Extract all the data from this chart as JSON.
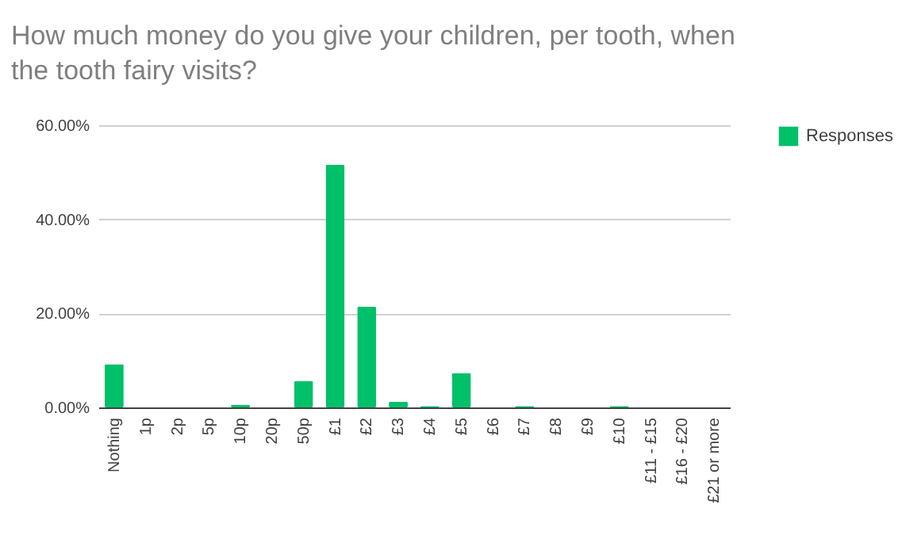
{
  "chart_data": {
    "type": "bar",
    "title": "How much money do you give your children, per tooth, when the tooth fairy visits?",
    "categories": [
      "Nothing",
      "1p",
      "2p",
      "5p",
      "10p",
      "20p",
      "50p",
      "£1",
      "£2",
      "£3",
      "£4",
      "£5",
      "£6",
      "£7",
      "£8",
      "£9",
      "£10",
      "£11 - £15",
      "£16 - £20",
      "£21 or more"
    ],
    "series": [
      {
        "name": "Responses",
        "color": "#00c06a",
        "values": [
          9.2,
          0,
          0,
          0,
          0.6,
          0,
          5.6,
          51.6,
          21.4,
          1.2,
          0.3,
          7.3,
          0,
          0.3,
          0,
          0,
          0.3,
          0,
          0,
          0
        ]
      }
    ],
    "ylim": [
      0,
      60
    ],
    "yticks": [
      {
        "value": 0,
        "label": "0.00%"
      },
      {
        "value": 20,
        "label": "20.00%"
      },
      {
        "value": 40,
        "label": "40.00%"
      },
      {
        "value": 60,
        "label": "60.00%"
      }
    ],
    "grid": "y",
    "legend": "top right"
  }
}
